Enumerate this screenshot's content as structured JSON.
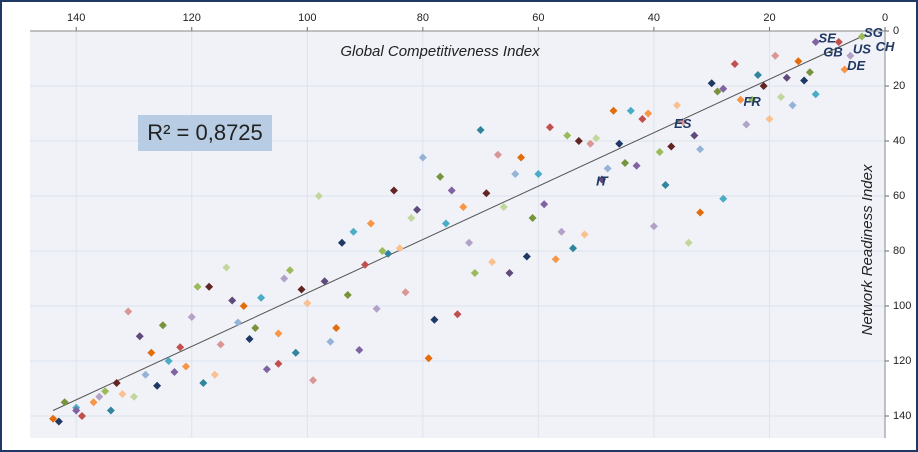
{
  "chart_data": {
    "type": "scatter",
    "x_label": "Global Competitiveness Index",
    "y_label": "Network Readiness Index",
    "annotation": "R² = 0,8725",
    "xlim": [
      148,
      0
    ],
    "ylim": [
      148,
      0
    ],
    "xticks": [
      140,
      120,
      100,
      80,
      60,
      40,
      20,
      0
    ],
    "yticks": [
      0,
      20,
      40,
      60,
      80,
      100,
      120,
      140
    ],
    "grid": true,
    "colors": [
      "#e46c0a",
      "#1f3864",
      "#77933c",
      "#4bacc6",
      "#8064a2",
      "#c0504d",
      "#f79646",
      "#b3a2c7",
      "#9bbb59",
      "#31859c",
      "#632523",
      "#fac090",
      "#d99694",
      "#c3d69b",
      "#604a7b",
      "#95b3d7"
    ],
    "x": [
      144,
      143,
      142,
      140,
      140,
      139,
      137,
      136,
      135,
      134,
      133,
      132,
      131,
      130,
      129,
      128,
      127,
      126,
      125,
      124,
      123,
      122,
      121,
      120,
      119,
      118,
      117,
      116,
      115,
      114,
      113,
      112,
      111,
      110,
      109,
      108,
      107,
      105,
      105,
      104,
      103,
      102,
      101,
      100,
      99,
      98,
      97,
      96,
      95,
      94,
      93,
      92,
      91,
      90,
      89,
      88,
      87,
      86,
      85,
      84,
      83,
      82,
      81,
      80,
      79,
      78,
      77,
      76,
      75,
      74,
      73,
      72,
      71,
      70,
      69,
      68,
      67,
      66,
      65,
      64,
      63,
      62,
      61,
      60,
      59,
      58,
      57,
      56,
      55,
      54,
      53,
      52,
      51,
      50,
      49,
      48,
      47,
      46,
      45,
      44,
      43,
      42,
      41,
      40,
      39,
      38,
      37,
      36,
      35,
      34,
      33,
      32,
      32,
      30,
      29,
      28,
      28,
      26,
      25,
      24,
      23,
      22,
      21,
      20,
      19,
      18,
      17,
      16,
      15,
      14,
      13,
      12,
      12,
      8,
      7,
      6,
      4
    ],
    "y": [
      141,
      142,
      135,
      137,
      138,
      140,
      135,
      133,
      131,
      138,
      128,
      132,
      102,
      133,
      111,
      125,
      117,
      129,
      107,
      120,
      124,
      115,
      122,
      104,
      93,
      128,
      93,
      125,
      114,
      86,
      98,
      106,
      100,
      112,
      108,
      97,
      123,
      121,
      110,
      90,
      87,
      117,
      94,
      99,
      127,
      60,
      91,
      113,
      108,
      77,
      96,
      73,
      116,
      85,
      70,
      101,
      80,
      81,
      58,
      79,
      95,
      68,
      65,
      46,
      119,
      105,
      53,
      70,
      58,
      103,
      64,
      77,
      88,
      36,
      59,
      84,
      45,
      64,
      88,
      52,
      46,
      82,
      68,
      52,
      63,
      35,
      83,
      73,
      38,
      79,
      40,
      74,
      41,
      39,
      54,
      50,
      29,
      41,
      48,
      29,
      49,
      32,
      30,
      71,
      44,
      56,
      42,
      27,
      33,
      77,
      38,
      43,
      66,
      19,
      22,
      61,
      21,
      12,
      25,
      34,
      25,
      16,
      20,
      32,
      9,
      24,
      17,
      27,
      11,
      18,
      15,
      23,
      4,
      4,
      14,
      9,
      2
    ],
    "trendline": {
      "x": [
        144,
        4
      ],
      "y": [
        138,
        2
      ]
    },
    "labels": [
      {
        "text": "SE",
        "x": 10,
        "y": 3
      },
      {
        "text": "SG",
        "x": 2,
        "y": 1
      },
      {
        "text": "GB",
        "x": 9,
        "y": 8
      },
      {
        "text": "US",
        "x": 4,
        "y": 7
      },
      {
        "text": "CH",
        "x": 0,
        "y": 6
      },
      {
        "text": "DE",
        "x": 5,
        "y": 13
      },
      {
        "text": "FR",
        "x": 23,
        "y": 26
      },
      {
        "text": "ES",
        "x": 35,
        "y": 34
      },
      {
        "text": "IT",
        "x": 49,
        "y": 55
      }
    ]
  }
}
